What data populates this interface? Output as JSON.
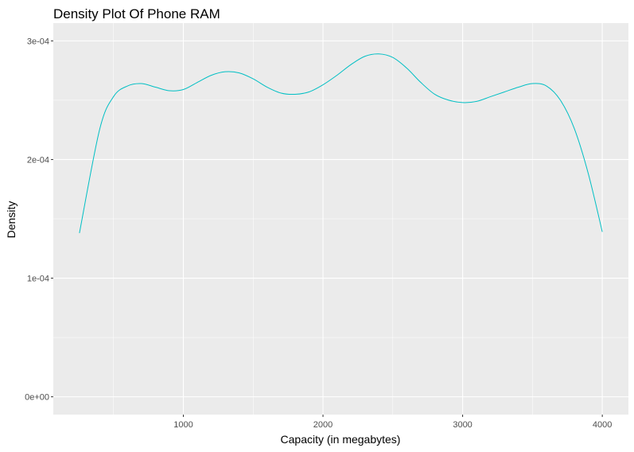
{
  "chart_data": {
    "type": "line",
    "title": "Density Plot Of Phone RAM",
    "xlabel": "Capacity (in megabytes)",
    "ylabel": "Density",
    "xlim": [
      256,
      4000
    ],
    "ylim": [
      0,
      0.0003
    ],
    "x_ticks": [
      {
        "value": 1000,
        "label": "1000"
      },
      {
        "value": 2000,
        "label": "2000"
      },
      {
        "value": 3000,
        "label": "3000"
      },
      {
        "value": 4000,
        "label": "4000"
      }
    ],
    "y_ticks": [
      {
        "value": 0,
        "label": "0e+00"
      },
      {
        "value": 0.0001,
        "label": "1e-04"
      },
      {
        "value": 0.0002,
        "label": "2e-04"
      },
      {
        "value": 0.0003,
        "label": "3e-04"
      }
    ],
    "grid": true,
    "colors": {
      "line": "#00BFC4",
      "panel": "#EBEBEB",
      "grid": "#FFFFFF"
    },
    "series": [
      {
        "x": [
          256,
          400,
          500,
          600,
          700,
          800,
          900,
          1000,
          1100,
          1200,
          1300,
          1400,
          1500,
          1600,
          1700,
          1800,
          1900,
          2000,
          2100,
          2200,
          2300,
          2400,
          2500,
          2600,
          2700,
          2800,
          2900,
          3000,
          3100,
          3200,
          3300,
          3400,
          3500,
          3600,
          3700,
          3800,
          3900,
          4000
        ],
        "y": [
          0.000138,
          0.000225,
          0.000253,
          0.000262,
          0.000264,
          0.000261,
          0.000258,
          0.000259,
          0.000265,
          0.000271,
          0.000274,
          0.000273,
          0.000268,
          0.000261,
          0.000256,
          0.000255,
          0.000257,
          0.000263,
          0.000271,
          0.00028,
          0.000287,
          0.000289,
          0.000286,
          0.000277,
          0.000265,
          0.000255,
          0.00025,
          0.000248,
          0.000249,
          0.000253,
          0.000257,
          0.000261,
          0.000264,
          0.000262,
          0.00025,
          0.000226,
          0.000188,
          0.000139
        ]
      }
    ]
  }
}
